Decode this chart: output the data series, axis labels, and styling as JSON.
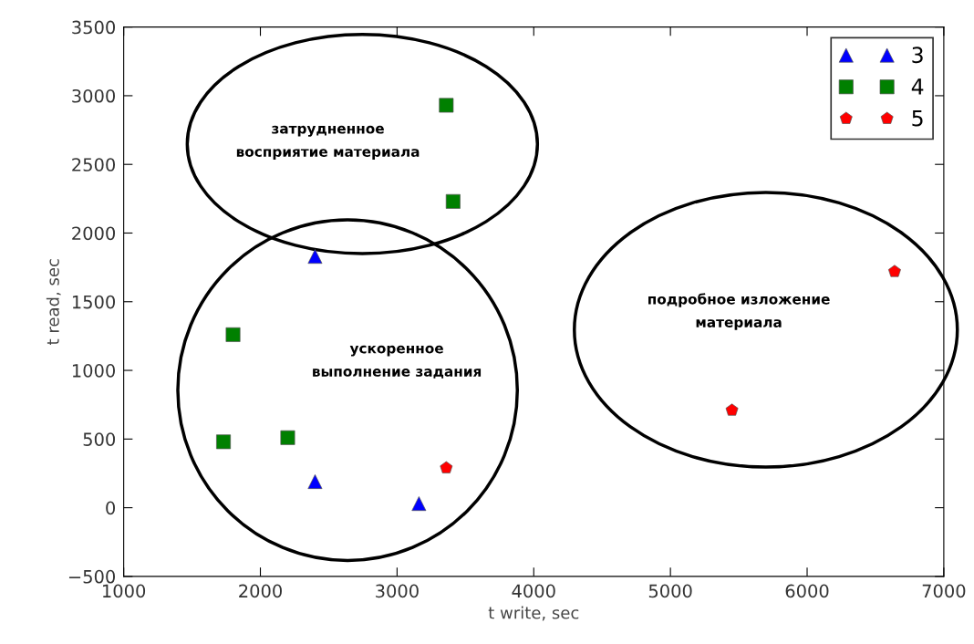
{
  "chart_data": {
    "type": "scatter",
    "xlabel": "t write, sec",
    "ylabel": "t read, sec",
    "xlim": [
      1000,
      7000
    ],
    "xticks": [
      1000,
      2000,
      3000,
      4000,
      5000,
      6000,
      7000
    ],
    "ylim": [
      -500,
      3500
    ],
    "yticks": [
      {
        "value": -500,
        "label": "−500"
      },
      0,
      500,
      1000,
      1500,
      2000,
      2500,
      3000,
      3500
    ],
    "grid": false,
    "legend": "top right",
    "series": [
      {
        "name": "3",
        "color": "#0000ff",
        "marker": "triangle",
        "x": [
          2400,
          2400,
          3160
        ],
        "values": [
          1830,
          190,
          30
        ]
      },
      {
        "name": "4",
        "color": "#008000",
        "marker": "square",
        "x": [
          3360,
          3410,
          1800,
          1730,
          2200
        ],
        "values": [
          2930,
          2230,
          1260,
          480,
          510
        ]
      },
      {
        "name": "5",
        "color": "#ff0000",
        "x": [
          3360,
          6640,
          5450
        ],
        "values": [
          290,
          1720,
          710
        ]
      }
    ],
    "annotations": [
      "затрудненное\nвосприятие материала",
      "ускоренное\nвыполнение задания",
      "подробное изложение\nматериала"
    ]
  }
}
